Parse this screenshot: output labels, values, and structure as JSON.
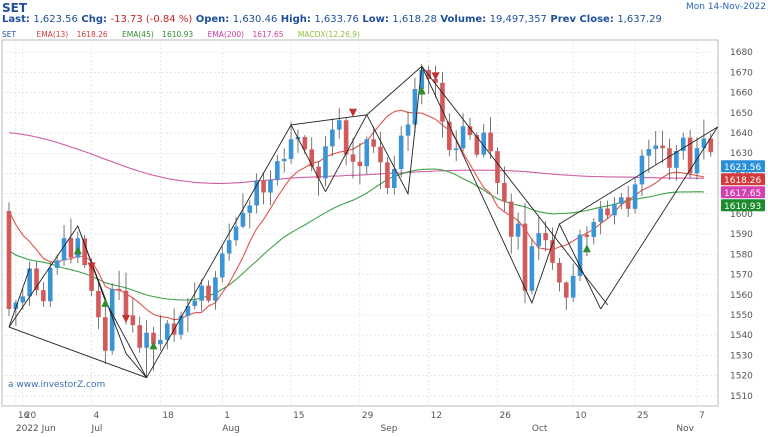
{
  "header": {
    "symbol": "SET",
    "date": "Mon 14-Nov-2022",
    "last_label": "Last:",
    "last_value": "1,623.56",
    "chg_label": "Chg:",
    "chg_value": "-13.73 (-0.84 %)",
    "open_label": "Open:",
    "open_value": "1,630.46",
    "high_label": "High:",
    "high_value": "1,633.76",
    "low_label": "Low:",
    "low_value": "1,618.28",
    "volume_label": "Volume:",
    "volume_value": "19,497,357",
    "prev_label": "Prev Close:",
    "prev_value": "1,637.29"
  },
  "legend": [
    {
      "label": "SET",
      "value": "",
      "color": "#1f4e9c"
    },
    {
      "label": "EMA(13)",
      "value": "1618.26",
      "color": "#d23b3b"
    },
    {
      "label": "EMA(45)",
      "value": "1610.93",
      "color": "#2e8b2e"
    },
    {
      "label": "EMA(200)",
      "value": "1617.65",
      "color": "#cc3fa0"
    },
    {
      "label": "MACDX(12,26,9)",
      "value": "",
      "color": "#8fbf3f"
    }
  ],
  "watermark": "investorZ.com",
  "chart_data": {
    "type": "candlestick",
    "y_range": [
      1505,
      1686
    ],
    "y_ticks": [
      1510,
      1520,
      1530,
      1540,
      1550,
      1560,
      1570,
      1580,
      1590,
      1600,
      1610,
      1620,
      1630,
      1640,
      1650,
      1660,
      1670,
      1680
    ],
    "x_ticks": [
      {
        "i": 1,
        "label": "16"
      },
      {
        "i": 2,
        "label": "20"
      },
      {
        "i": 12,
        "label": "4"
      },
      {
        "i": 22,
        "label": "18"
      },
      {
        "i": 31,
        "label": "1"
      },
      {
        "i": 41,
        "label": "15"
      },
      {
        "i": 51,
        "label": "29"
      },
      {
        "i": 61,
        "label": "12"
      },
      {
        "i": 71,
        "label": "26"
      },
      {
        "i": 82,
        "label": "10"
      },
      {
        "i": 91,
        "label": "25"
      },
      {
        "i": 100,
        "label": "7"
      }
    ],
    "month_labels": [
      {
        "i": 1,
        "label": "2022 Jun"
      },
      {
        "i": 12,
        "label": "Jul"
      },
      {
        "i": 31,
        "label": "Aug"
      },
      {
        "i": 54,
        "label": "Sep"
      },
      {
        "i": 76,
        "label": "Oct"
      },
      {
        "i": 97,
        "label": "Nov"
      }
    ],
    "candles": [
      [
        1601.5,
        1605.7,
        1549.4,
        1553.0
      ],
      [
        1553.0,
        1557.5,
        1544.6,
        1556.2
      ],
      [
        1556.2,
        1563.0,
        1552.7,
        1559.2
      ],
      [
        1559.2,
        1576.4,
        1554.5,
        1573.0
      ],
      [
        1573.0,
        1576.3,
        1559.7,
        1562.3
      ],
      [
        1562.3,
        1566.2,
        1554.0,
        1556.8
      ],
      [
        1556.8,
        1576.3,
        1554.0,
        1573.3
      ],
      [
        1573.3,
        1579.9,
        1569.9,
        1577.0
      ],
      [
        1577.0,
        1594.5,
        1574.3,
        1588.0
      ],
      [
        1588.0,
        1597.7,
        1575.6,
        1578.4
      ],
      [
        1578.4,
        1591.2,
        1575.7,
        1587.9
      ],
      [
        1587.9,
        1589.6,
        1573.2,
        1574.7
      ],
      [
        1574.7,
        1577.9,
        1559.4,
        1561.9
      ],
      [
        1561.9,
        1566.4,
        1543.1,
        1548.9
      ],
      [
        1548.9,
        1556.1,
        1525.8,
        1532.3
      ],
      [
        1532.3,
        1565.8,
        1530.4,
        1562.9
      ],
      [
        1562.9,
        1571.9,
        1557.4,
        1562.0
      ],
      [
        1562.0,
        1571.0,
        1545.3,
        1549.8
      ],
      [
        1549.8,
        1558.4,
        1541.2,
        1545.0
      ],
      [
        1545.0,
        1549.2,
        1531.3,
        1533.8
      ],
      [
        1533.8,
        1547.4,
        1519.0,
        1541.2
      ],
      [
        1541.2,
        1544.1,
        1522.5,
        1535.5
      ],
      [
        1535.5,
        1550.0,
        1532.3,
        1537.7
      ],
      [
        1537.7,
        1547.6,
        1533.0,
        1545.8
      ],
      [
        1545.8,
        1553.3,
        1536.8,
        1540.3
      ],
      [
        1540.3,
        1551.7,
        1537.9,
        1549.6
      ],
      [
        1549.6,
        1558.4,
        1541.5,
        1554.5
      ],
      [
        1554.5,
        1566.2,
        1552.8,
        1557.1
      ],
      [
        1557.1,
        1567.7,
        1551.9,
        1564.5
      ],
      [
        1564.5,
        1567.1,
        1556.2,
        1557.1
      ],
      [
        1557.1,
        1571.7,
        1552.6,
        1568.6
      ],
      [
        1568.6,
        1583.9,
        1566.2,
        1580.4
      ],
      [
        1580.4,
        1595.2,
        1576.8,
        1587.0
      ],
      [
        1587.0,
        1598.6,
        1584.1,
        1593.7
      ],
      [
        1593.7,
        1610.1,
        1592.9,
        1600.5
      ],
      [
        1600.5,
        1606.7,
        1592.8,
        1604.2
      ],
      [
        1604.2,
        1620.1,
        1600.3,
        1616.6
      ],
      [
        1616.6,
        1620.6,
        1604.7,
        1610.6
      ],
      [
        1610.6,
        1621.6,
        1604.4,
        1616.8
      ],
      [
        1616.8,
        1629.2,
        1614.1,
        1626.1
      ],
      [
        1626.1,
        1632.5,
        1620.4,
        1627.2
      ],
      [
        1627.2,
        1645.6,
        1624.8,
        1636.9
      ],
      [
        1636.9,
        1641.7,
        1630.2,
        1638.0
      ],
      [
        1638.0,
        1639.0,
        1629.7,
        1631.9
      ],
      [
        1631.9,
        1637.9,
        1621.0,
        1623.4
      ],
      [
        1623.4,
        1626.0,
        1609.0,
        1617.6
      ],
      [
        1617.6,
        1638.4,
        1613.7,
        1633.4
      ],
      [
        1633.4,
        1647.1,
        1628.5,
        1641.7
      ],
      [
        1641.7,
        1652.3,
        1637.2,
        1646.3
      ],
      [
        1646.3,
        1647.7,
        1624.0,
        1629.4
      ],
      [
        1629.4,
        1637.6,
        1617.5,
        1625.8
      ],
      [
        1625.8,
        1635.0,
        1614.6,
        1623.6
      ],
      [
        1623.6,
        1638.2,
        1619.8,
        1636.9
      ],
      [
        1636.9,
        1643.3,
        1630.2,
        1633.2
      ],
      [
        1633.2,
        1640.6,
        1612.3,
        1625.5
      ],
      [
        1625.5,
        1628.0,
        1609.8,
        1612.8
      ],
      [
        1612.8,
        1628.7,
        1609.5,
        1622.2
      ],
      [
        1622.2,
        1643.4,
        1617.9,
        1638.7
      ],
      [
        1638.7,
        1650.7,
        1631.1,
        1644.2
      ],
      [
        1644.2,
        1667.3,
        1640.0,
        1661.8
      ],
      [
        1661.8,
        1674.0,
        1654.2,
        1671.2
      ],
      [
        1671.2,
        1673.1,
        1659.3,
        1666.7
      ],
      [
        1666.7,
        1673.4,
        1657.5,
        1664.8
      ],
      [
        1664.8,
        1670.3,
        1637.8,
        1645.6
      ],
      [
        1645.6,
        1649.8,
        1628.5,
        1631.6
      ],
      [
        1631.6,
        1641.3,
        1626.1,
        1632.4
      ],
      [
        1632.4,
        1649.7,
        1630.9,
        1643.3
      ],
      [
        1643.3,
        1647.5,
        1636.6,
        1639.0
      ],
      [
        1639.0,
        1640.4,
        1627.9,
        1629.3
      ],
      [
        1629.3,
        1644.4,
        1627.8,
        1640.2
      ],
      [
        1640.2,
        1647.9,
        1627.2,
        1631.0
      ],
      [
        1631.0,
        1632.9,
        1609.7,
        1615.3
      ],
      [
        1615.3,
        1623.5,
        1601.3,
        1606.1
      ],
      [
        1606.1,
        1610.0,
        1580.3,
        1588.7
      ],
      [
        1588.7,
        1600.6,
        1582.3,
        1595.2
      ],
      [
        1595.2,
        1605.2,
        1555.8,
        1562.0
      ],
      [
        1562.0,
        1587.9,
        1560.3,
        1584.0
      ],
      [
        1584.0,
        1598.5,
        1577.1,
        1590.5
      ],
      [
        1590.5,
        1596.4,
        1581.5,
        1587.0
      ],
      [
        1587.0,
        1593.3,
        1572.4,
        1575.8
      ],
      [
        1575.8,
        1578.1,
        1561.6,
        1566.1
      ],
      [
        1566.1,
        1566.7,
        1552.5,
        1558.6
      ],
      [
        1558.6,
        1575.5,
        1556.5,
        1569.3
      ],
      [
        1569.3,
        1592.2,
        1566.8,
        1589.7
      ],
      [
        1589.7,
        1593.9,
        1579.2,
        1588.6
      ],
      [
        1588.6,
        1597.8,
        1584.9,
        1596.0
      ],
      [
        1596.0,
        1606.4,
        1589.8,
        1602.7
      ],
      [
        1602.7,
        1606.5,
        1597.8,
        1599.3
      ],
      [
        1599.3,
        1608.3,
        1594.8,
        1605.0
      ],
      [
        1605.0,
        1610.4,
        1602.2,
        1608.2
      ],
      [
        1608.2,
        1613.8,
        1598.5,
        1602.5
      ],
      [
        1602.5,
        1617.7,
        1600.2,
        1614.6
      ],
      [
        1614.6,
        1631.8,
        1608.9,
        1628.8
      ],
      [
        1628.8,
        1636.7,
        1620.3,
        1632.1
      ],
      [
        1632.1,
        1641.0,
        1624.3,
        1633.8
      ],
      [
        1633.8,
        1641.1,
        1625.1,
        1632.5
      ],
      [
        1632.5,
        1637.1,
        1616.9,
        1622.8
      ],
      [
        1622.8,
        1634.1,
        1616.4,
        1631.1
      ],
      [
        1631.1,
        1640.1,
        1626.8,
        1637.7
      ],
      [
        1637.7,
        1641.6,
        1617.8,
        1620.1
      ],
      [
        1620.1,
        1637.9,
        1617.0,
        1632.5
      ],
      [
        1632.5,
        1646.6,
        1626.9,
        1637.3
      ],
      [
        1637.3,
        1639.7,
        1628.3,
        1630.5
      ]
    ],
    "ema13": [
      1601.5,
      1594.6,
      1589.5,
      1586.3,
      1582.3,
      1578.0,
      1576.3,
      1575.9,
      1577.6,
      1577.7,
      1579.2,
      1578.9,
      1576.5,
      1571.1,
      1564.1,
      1562.5,
      1562.4,
      1560.6,
      1558.4,
      1555.8,
      1552.7,
      1550.3,
      1549.2,
      1548.8,
      1547.7,
      1548.0,
      1550.0,
      1551.1,
      1551.3,
      1554.4,
      1556.1,
      1561.0,
      1565.8,
      1572.0,
      1578.5,
      1586.3,
      1592.8,
      1597.3,
      1602.6,
      1608.3,
      1613.3,
      1618.1,
      1621.1,
      1622.9,
      1625.0,
      1625.8,
      1628.1,
      1629.5,
      1630.5,
      1631.2,
      1632.0,
      1634.1,
      1635.9,
      1640.3,
      1644.5,
      1648.3,
      1650.6,
      1651.3,
      1650.2,
      1650.0,
      1649.8,
      1648.4,
      1646.8,
      1643.9,
      1641.3,
      1636.9,
      1630.2,
      1624.5,
      1618.7,
      1613.0,
      1610.1,
      1603.7,
      1601.0,
      1598.9,
      1596.7,
      1592.5,
      1587.3,
      1583.2,
      1582.6,
      1582.3,
      1583.7,
      1584.6,
      1586.6,
      1588.8,
      1590.5,
      1592.5,
      1595.2,
      1597.7,
      1600.9,
      1604.6,
      1606.6,
      1609.2,
      1611.7,
      1613.3,
      1615.3,
      1618.0,
      1620.1,
      1620.6,
      1620.2,
      1619.6,
      1619.0,
      1618.3
    ],
    "ema45": [
      1581.9,
      1579.6,
      1578.4,
      1577.3,
      1576.6,
      1576.1,
      1575.3,
      1574.2,
      1573.2,
      1572.4,
      1571.5,
      1570.5,
      1569.2,
      1567.7,
      1566.0,
      1565.0,
      1564.3,
      1563.4,
      1562.3,
      1561.1,
      1559.9,
      1559.1,
      1558.4,
      1557.9,
      1557.6,
      1557.4,
      1557.4,
      1557.7,
      1558.4,
      1559.5,
      1560.8,
      1562.8,
      1564.9,
      1567.5,
      1570.6,
      1573.8,
      1576.7,
      1580.0,
      1582.9,
      1585.8,
      1588.6,
      1590.7,
      1592.7,
      1594.5,
      1596.6,
      1598.6,
      1600.6,
      1602.5,
      1604.1,
      1605.5,
      1606.8,
      1608.4,
      1610.3,
      1612.6,
      1614.8,
      1617.0,
      1618.6,
      1619.7,
      1620.8,
      1621.5,
      1622.0,
      1622.1,
      1622.2,
      1621.7,
      1620.7,
      1619.3,
      1617.4,
      1615.8,
      1613.8,
      1611.8,
      1609.5,
      1607.5,
      1606.2,
      1605.1,
      1604.3,
      1603.5,
      1602.2,
      1601.1,
      1600.5,
      1600.0,
      1600.2,
      1600.3,
      1600.6,
      1601.1,
      1601.7,
      1602.5,
      1603.3,
      1604.0,
      1604.7,
      1605.8,
      1606.8,
      1607.2,
      1607.8,
      1608.4,
      1609.1,
      1609.9,
      1610.5,
      1610.8,
      1610.9,
      1610.9,
      1611.0,
      1610.9
    ],
    "ema200": [
      1640.1,
      1639.8,
      1639.3,
      1638.7,
      1638.0,
      1637.2,
      1636.3,
      1635.3,
      1634.2,
      1633.1,
      1632.0,
      1630.8,
      1629.6,
      1628.3,
      1627.0,
      1625.8,
      1624.5,
      1623.3,
      1622.1,
      1621.0,
      1620.0,
      1619.1,
      1618.3,
      1617.5,
      1616.9,
      1616.4,
      1616.0,
      1615.6,
      1615.4,
      1615.2,
      1615.1,
      1615.1,
      1615.2,
      1615.4,
      1615.6,
      1615.9,
      1616.2,
      1616.5,
      1616.8,
      1617.1,
      1617.4,
      1617.7,
      1617.9,
      1618.1,
      1618.2,
      1618.4,
      1618.5,
      1618.7,
      1618.8,
      1619.0,
      1619.1,
      1619.2,
      1619.4,
      1619.6,
      1619.8,
      1620.0,
      1620.2,
      1620.3,
      1620.5,
      1620.7,
      1620.9,
      1621.0,
      1621.2,
      1621.3,
      1621.4,
      1621.5,
      1621.6,
      1621.6,
      1621.6,
      1621.6,
      1621.6,
      1621.5,
      1621.4,
      1621.3,
      1621.1,
      1620.9,
      1620.6,
      1620.3,
      1620.0,
      1619.7,
      1619.4,
      1619.2,
      1619.0,
      1618.8,
      1618.6,
      1618.5,
      1618.4,
      1618.3,
      1618.3,
      1618.2,
      1618.2,
      1618.1,
      1618.0,
      1617.9,
      1617.9,
      1617.8,
      1617.7,
      1617.7,
      1617.7,
      1617.7,
      1617.6,
      1617.6
    ],
    "zigzag": [
      [
        [
          0,
          1544
        ],
        [
          10,
          1594
        ],
        [
          17,
          1531
        ],
        [
          20,
          1519
        ],
        [
          14,
          1557
        ],
        [
          10,
          1594
        ]
      ],
      [
        [
          3,
          1573
        ],
        [
          0,
          1544
        ]
      ],
      [
        [
          0,
          1544
        ],
        [
          20,
          1519
        ]
      ],
      [
        [
          20,
          1519
        ],
        [
          41,
          1644
        ],
        [
          52,
          1649
        ],
        [
          60,
          1673
        ],
        [
          87,
          1555
        ]
      ],
      [
        [
          41,
          1644
        ],
        [
          46,
          1611
        ]
      ],
      [
        [
          46,
          1611
        ],
        [
          52,
          1649
        ],
        [
          58,
          1610
        ],
        [
          60,
          1673
        ]
      ],
      [
        [
          60,
          1673
        ],
        [
          76,
          1556
        ],
        [
          80,
          1595
        ],
        [
          86,
          1553
        ]
      ],
      [
        [
          86,
          1553
        ],
        [
          103,
          1643
        ]
      ],
      [
        [
          80,
          1595
        ],
        [
          103,
          1643
        ]
      ]
    ],
    "markers": [
      {
        "i": 12,
        "y": 1574,
        "kind": "down",
        "color": "#c03030"
      },
      {
        "i": 10,
        "y": 1582,
        "kind": "up",
        "color": "#2e8b2e"
      },
      {
        "i": 14,
        "y": 1556,
        "kind": "up",
        "color": "#2e8b2e"
      },
      {
        "i": 17,
        "y": 1548,
        "kind": "down",
        "color": "#c03030"
      },
      {
        "i": 21,
        "y": 1535,
        "kind": "up",
        "color": "#2e8b2e"
      },
      {
        "i": 50,
        "y": 1650,
        "kind": "down",
        "color": "#c03030"
      },
      {
        "i": 60,
        "y": 1661,
        "kind": "up",
        "color": "#2e8b2e"
      },
      {
        "i": 62,
        "y": 1668,
        "kind": "down",
        "color": "#c03030"
      },
      {
        "i": 84,
        "y": 1583,
        "kind": "up",
        "color": "#2e8b2e"
      }
    ],
    "price_tags": [
      {
        "value": 1623.56,
        "label": "1623.56",
        "color": "#2a8fd6"
      },
      {
        "value": 1618.26,
        "label": "1618.26",
        "color": "#d23b3b"
      },
      {
        "value": 1610.93,
        "label": "1610.93",
        "color": "#1e8a2e"
      },
      {
        "value": 1617.65,
        "label": "1617.65",
        "color": "#d63fb0"
      }
    ],
    "colors": {
      "up": "#3a94d6",
      "down": "#d25a5a",
      "wick": "#555555",
      "ema13": "#e0544e",
      "ema45": "#3fa34a",
      "ema200": "#d05fa8",
      "zigzag": "#222222",
      "grid": "#d8d8d8",
      "axis_text": "#555555"
    }
  }
}
